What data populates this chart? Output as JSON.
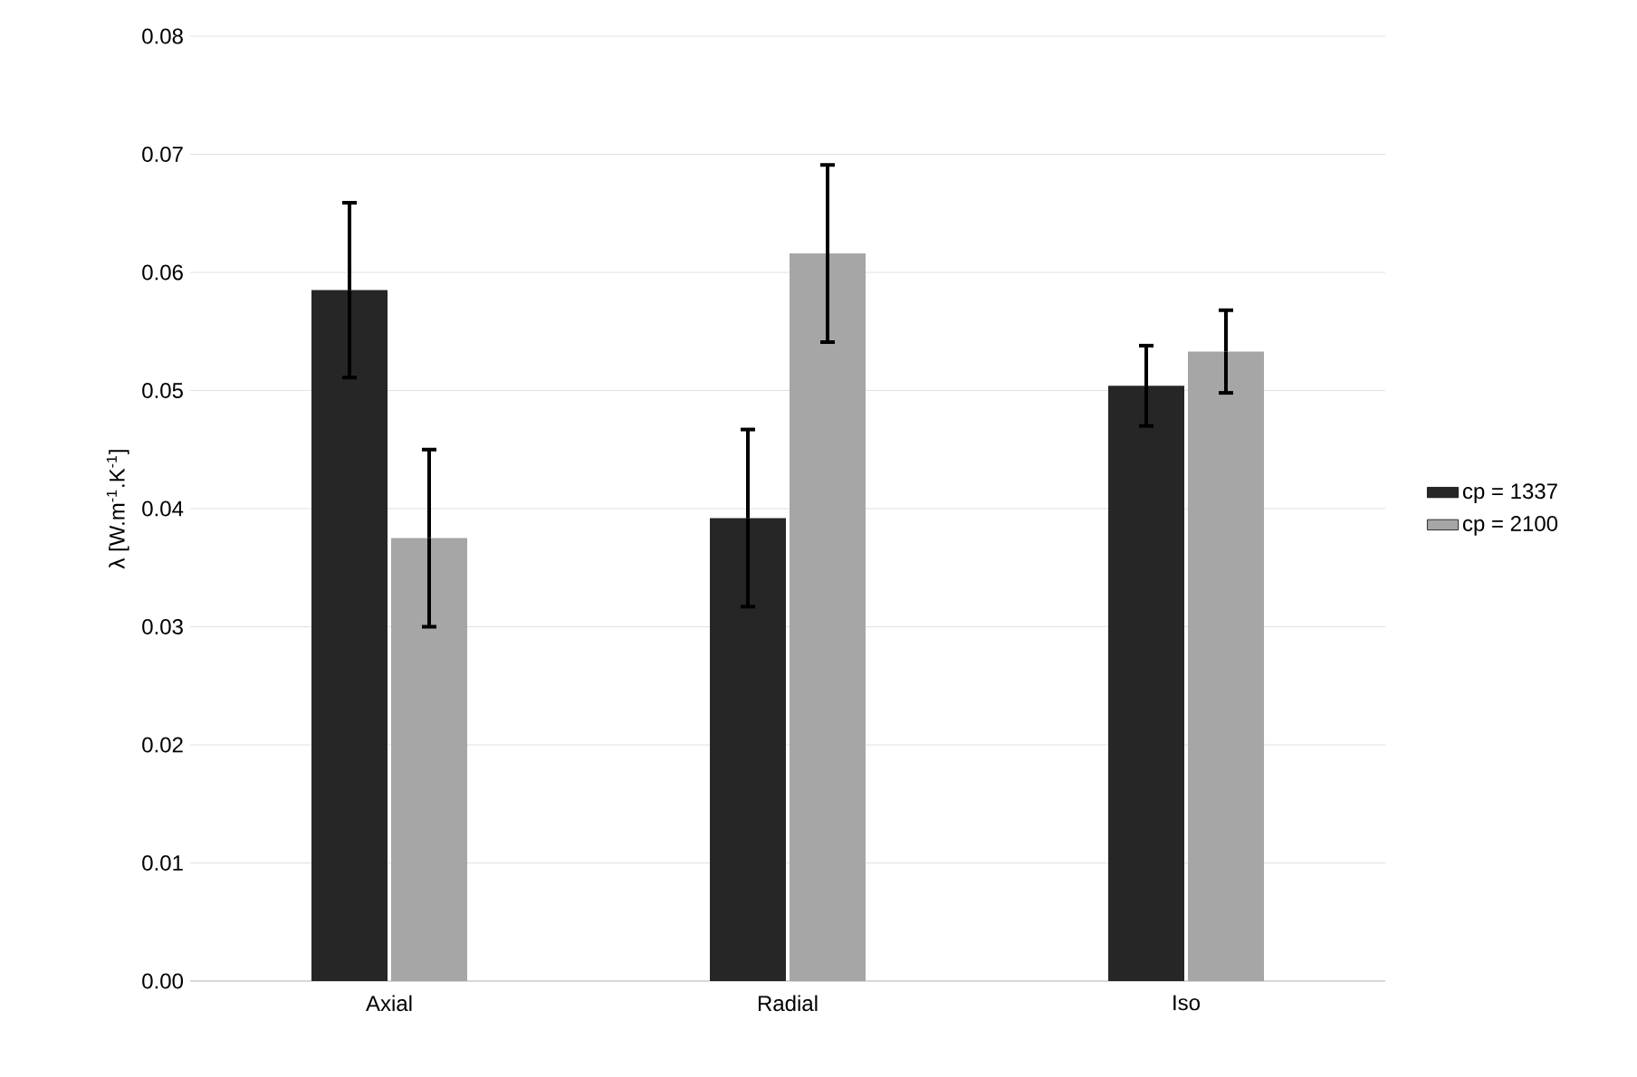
{
  "chart_data": {
    "type": "bar",
    "ylabel": "λ [W.m$^{-1}$.K$^{-1}$]",
    "categories": [
      "Axial",
      "Radial",
      "Iso"
    ],
    "series": [
      {
        "name": "cp = 1337",
        "color": "#262626",
        "values": [
          0.0585,
          0.0392,
          0.0504
        ],
        "errors": [
          0.0074,
          0.0075,
          0.0034
        ]
      },
      {
        "name": "cp = 2100",
        "color": "#a6a6a6",
        "values": [
          0.0375,
          0.0616,
          0.0533
        ],
        "errors": [
          0.0075,
          0.0075,
          0.0035
        ]
      }
    ],
    "ylim": [
      0,
      0.08
    ],
    "yticks": [
      {
        "value": 0,
        "label": "0.00"
      },
      0.01,
      0.02,
      0.03,
      0.04,
      0.05,
      0.06,
      0.07,
      0.08
    ],
    "grid": "y",
    "legend": "right"
  }
}
